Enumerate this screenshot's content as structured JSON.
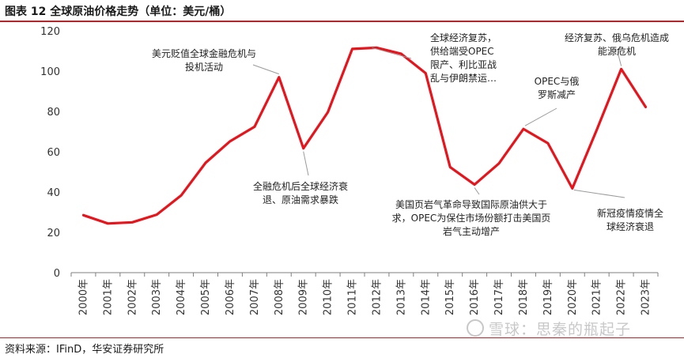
{
  "header": {
    "title": "图表 12 全球原油价格走势（单位：美元/桶）"
  },
  "footer": {
    "source": "资料来源：IFinD，华安证券研究所",
    "watermark": "雪球：思秦的瓶起子"
  },
  "colors": {
    "line": "#e8141c",
    "accent": "#b4262a",
    "axis": "#7f7f7f"
  },
  "chart_data": {
    "type": "line",
    "title": "",
    "xlabel": "",
    "ylabel": "",
    "ylim": [
      0,
      120
    ],
    "yticks": [
      0,
      20,
      40,
      60,
      80,
      100,
      120
    ],
    "grid": false,
    "categories": [
      "2000年",
      "2001年",
      "2002年",
      "2003年",
      "2004年",
      "2005年",
      "2006年",
      "2007年",
      "2008年",
      "2009年",
      "2010年",
      "2011年",
      "2012年",
      "2013年",
      "2014年",
      "2015年",
      "2016年",
      "2017年",
      "2018年",
      "2019年",
      "2020年",
      "2021年",
      "2022年",
      "2023年"
    ],
    "series": [
      {
        "values": [
          28.5,
          24.4,
          25.0,
          28.8,
          38.3,
          54.5,
          65.2,
          72.4,
          97.0,
          61.7,
          79.6,
          111.0,
          111.6,
          108.6,
          99.0,
          52.4,
          43.7,
          54.2,
          71.3,
          64.2,
          41.8,
          70.9,
          101.0,
          82.2
        ]
      }
    ],
    "annotations": [
      {
        "lines": [
          "美元贬值全球金融危机与",
          "投机活动"
        ],
        "x_index": 8,
        "y": 97.0
      },
      {
        "lines": [
          "全融危机后全球经济衰",
          "退、原油需求暴跌"
        ],
        "x_index": 9,
        "y": 61.7
      },
      {
        "lines": [
          "全球经济复苏，",
          "供给端受OPEC",
          "限产、利比亚战",
          "乱与伊朗禁运…"
        ],
        "x_index": 12,
        "y": 111.6
      },
      {
        "lines": [
          "美国页岩气革命导致国际原油供大于",
          "求，OPEC为保住市场份额打击美国页",
          "岩气主动增产"
        ],
        "x_index": 16,
        "y": 43.7
      },
      {
        "lines": [
          "OPEC与俄",
          "罗斯减产"
        ],
        "x_index": 18,
        "y": 71.3
      },
      {
        "lines": [
          "经济复苏、俄乌危机造成",
          "能源危机"
        ],
        "x_index": 22,
        "y": 101.0
      },
      {
        "lines": [
          "新冠疫情疫情全",
          "球经济衰退"
        ],
        "x_index": 20,
        "y": 41.8
      }
    ]
  }
}
